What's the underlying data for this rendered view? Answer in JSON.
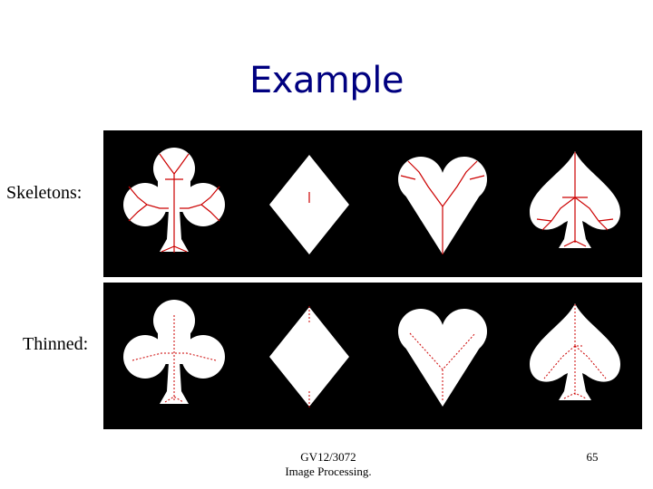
{
  "slide": {
    "title": "Example",
    "rows": [
      {
        "label": "Skeletons:"
      },
      {
        "label": "Thinned:"
      }
    ],
    "shapes": [
      "club-shape",
      "diamond-shape",
      "heart-shape",
      "spade-shape"
    ],
    "colors": {
      "title": "#000080",
      "panel_background": "#000000",
      "shape_fill": "#ffffff",
      "skeleton_line": "#cc0000"
    }
  },
  "footer": {
    "course_code": "GV12/3072",
    "course_name": "Image Processing.",
    "page_number": "65"
  }
}
